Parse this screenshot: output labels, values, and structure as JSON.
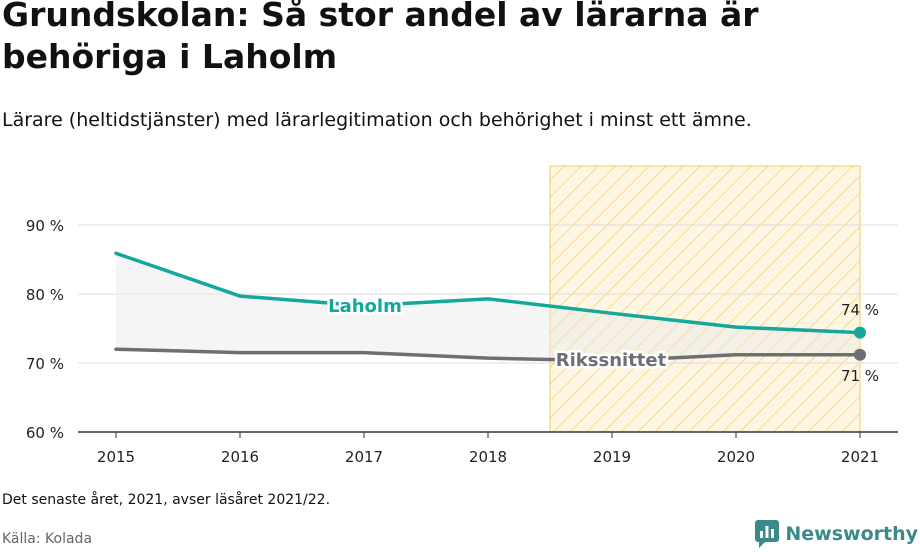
{
  "title": "Grundskolan: Så stor andel av lärarna är behöriga i Laholm",
  "subtitle": "Lärare (heltidstjänster) med lärarlegitimation och behörighet i minst ett ämne.",
  "note": "Det senaste året, 2021, avser läsåret 2021/22.",
  "source": "Källa: Kolada",
  "brand": {
    "name": "Newsworthy",
    "icon": "newsworthy-logo-icon"
  },
  "colors": {
    "laholm": "#14a89a",
    "riket": "#6e6e76",
    "highlight": "#f7c95b"
  },
  "chart_data": {
    "type": "line",
    "x": [
      2015,
      2016,
      2017,
      2018,
      2019,
      2020,
      2021
    ],
    "ylim": [
      60,
      90
    ],
    "yticks": [
      60,
      70,
      80,
      90
    ],
    "ytick_labels": [
      "60 %",
      "70 %",
      "80 %",
      "90 %"
    ],
    "grid": true,
    "highlight_range": [
      2018.5,
      2021
    ],
    "series": [
      {
        "name": "Laholm",
        "key": "laholm",
        "values": [
          85.9,
          79.7,
          78.3,
          79.3,
          77.2,
          75.2,
          74.4
        ],
        "end_label": "74 %"
      },
      {
        "name": "Rikssnittet",
        "key": "riket",
        "values": [
          72.0,
          71.5,
          71.5,
          70.7,
          70.3,
          71.2,
          71.2
        ],
        "end_label": "71 %"
      }
    ]
  }
}
